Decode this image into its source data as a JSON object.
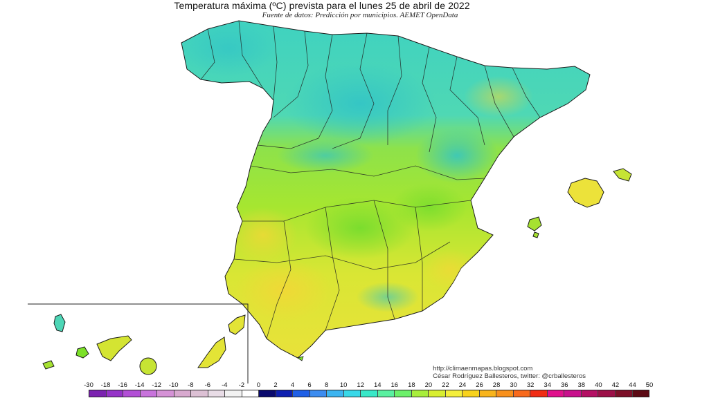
{
  "title": "Temperatura máxima (ºC) prevista para el lunes 25 de abril de 2022",
  "subtitle": "Fuente de datos: Predicción por municipios. AEMET OpenData",
  "credit": {
    "blog": "http://climaenmapas.blogspot.com",
    "author": "César Rodríguez Ballesteros, twitter: @crballesteros"
  },
  "legend": {
    "labels": [
      "-30",
      "-18",
      "-16",
      "-14",
      "-12",
      "-10",
      "-8",
      "-6",
      "-4",
      "-2",
      "0",
      "2",
      "4",
      "6",
      "8",
      "10",
      "12",
      "14",
      "16",
      "18",
      "20",
      "22",
      "24",
      "26",
      "28",
      "30",
      "32",
      "34",
      "36",
      "38",
      "40",
      "42",
      "44",
      "50"
    ],
    "colors": [
      "#7b22b0",
      "#9533c8",
      "#b24fd6",
      "#c873dc",
      "#d592d6",
      "#d8a9cf",
      "#dcc0d4",
      "#e8dce6",
      "#f2f2f2",
      "#ffffff",
      "#0a0a6e",
      "#0e1fb0",
      "#1f5fe6",
      "#3c8cf0",
      "#3cb4f0",
      "#38d8e8",
      "#39e8c8",
      "#5af0a0",
      "#6cf06a",
      "#a8ee3c",
      "#d8ee30",
      "#f4ee3c",
      "#f8d21c",
      "#f8b41c",
      "#f8901c",
      "#f86a1c",
      "#f02c14",
      "#e0108c",
      "#c8108c",
      "#b41064",
      "#9c1048",
      "#7c1028",
      "#5c0a14"
    ]
  },
  "map": {
    "main_landmass_color": "#7be028",
    "north_band_color": "#3ccfc8",
    "south_color": "#e6e436"
  }
}
